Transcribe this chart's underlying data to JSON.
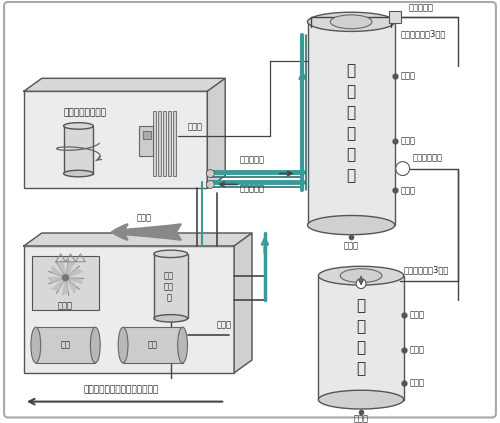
{
  "bg_color": "#f0f0f0",
  "border_color": "#aaaaaa",
  "box_face": "#ececec",
  "box_top": "#d8d8d8",
  "box_right": "#d0d0d0",
  "tank_body": "#e2e2e2",
  "tank_top": "#d0d0d0",
  "tank_bot": "#c8c8c8",
  "pipe_teal": "#3a9a9a",
  "pipe_dark": "#444444",
  "pipe_gray": "#888888",
  "text_color": "#222222",
  "label_fs": 6.5,
  "small_fs": 6.0,
  "labels": {
    "heat_exchanger_box": "空压机热能转换机",
    "radiator": "散热器",
    "oil_separator": "油气分离器",
    "motor": "电机",
    "machine_head": "机头",
    "circulate_tank": "循环保温水塔",
    "insulation_tank": "保温水塔",
    "temp_control": "温控线",
    "oil_return": "回油管",
    "oil_filter": "过滤管",
    "circ_return_water": "循环回水管",
    "circ_water": "循环进水管",
    "water_level_sensor1": "水位感应线（3条）",
    "water_makeup": "补水电磁阀",
    "high_water": "高水位",
    "mid_water": "中水位",
    "low_water": "底水位",
    "drain": "排污口",
    "hot_water_to_tank": "热水到保温塔",
    "water_level_sensor2": "水位感应线（3条）",
    "high_water2": "高水位",
    "mid_water2": "中水位",
    "low_water2": "底水位",
    "drain2": "排污口",
    "send_hot_water": "送热水到每层楼或用热水的地方"
  }
}
